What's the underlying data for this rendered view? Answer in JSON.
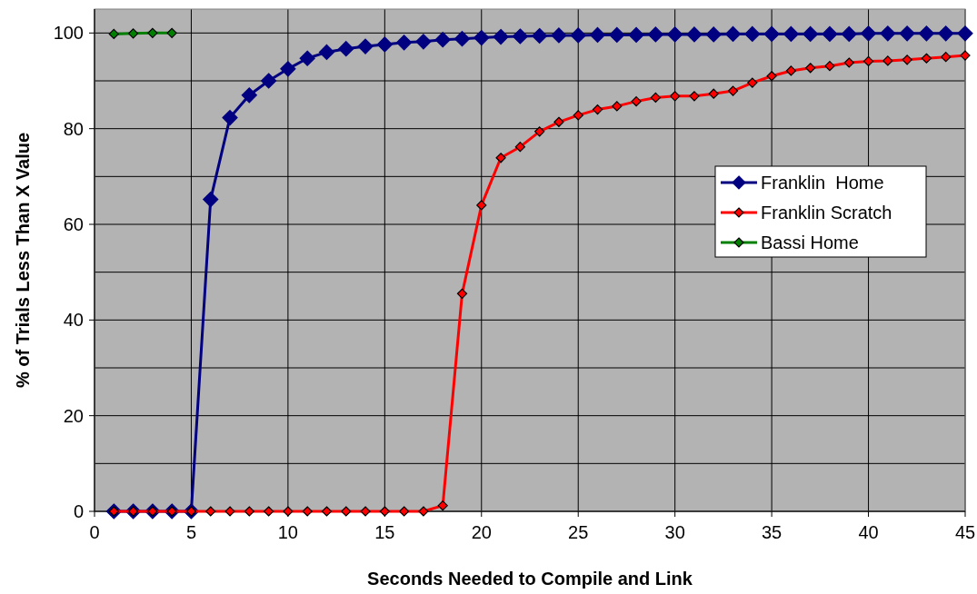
{
  "chart_data": {
    "type": "line",
    "xlabel": "Seconds Needed to Compile and Link",
    "ylabel": "% of Trials Less Than X Value",
    "x": [
      1,
      2,
      3,
      4,
      5,
      6,
      7,
      8,
      9,
      10,
      11,
      12,
      13,
      14,
      15,
      16,
      17,
      18,
      19,
      20,
      21,
      22,
      23,
      24,
      25,
      26,
      27,
      28,
      29,
      30,
      31,
      32,
      33,
      34,
      35,
      36,
      37,
      38,
      39,
      40,
      41,
      42,
      43,
      44,
      45
    ],
    "series": [
      {
        "name": "Franklin  Home",
        "color": "#000080",
        "values": [
          0,
          0,
          0,
          0,
          0,
          65.2,
          82.3,
          87,
          90,
          92.5,
          94.7,
          96,
          96.7,
          97.2,
          97.6,
          98,
          98.2,
          98.6,
          98.8,
          99,
          99.2,
          99.3,
          99.4,
          99.5,
          99.5,
          99.6,
          99.6,
          99.6,
          99.7,
          99.7,
          99.7,
          99.7,
          99.8,
          99.8,
          99.8,
          99.8,
          99.8,
          99.8,
          99.8,
          99.9,
          99.9,
          99.9,
          99.9,
          99.9,
          99.9
        ]
      },
      {
        "name": "Franklin Scratch",
        "color": "#ff0000",
        "values": [
          0,
          0,
          0,
          0,
          0,
          0,
          0,
          0,
          0,
          0,
          0,
          0,
          0,
          0,
          0,
          0,
          0,
          1.2,
          45.5,
          64,
          73.9,
          76.2,
          79.4,
          81.4,
          82.8,
          84,
          84.7,
          85.7,
          86.5,
          86.8,
          86.8,
          87.3,
          87.9,
          89.6,
          91,
          92.1,
          92.7,
          93.1,
          93.8,
          94.1,
          94.2,
          94.4,
          94.7,
          95,
          95.3
        ]
      },
      {
        "name": "Bassi Home",
        "color": "#008000",
        "x": [
          1,
          2,
          3,
          4
        ],
        "values": [
          99.8,
          99.9,
          100,
          100
        ]
      }
    ],
    "xlim": [
      0,
      45
    ],
    "xticks": [
      0,
      5,
      10,
      15,
      20,
      25,
      30,
      35,
      40,
      45
    ],
    "ylim": [
      0,
      105
    ],
    "yticks": [
      0,
      20,
      40,
      60,
      80,
      100
    ],
    "grid": true,
    "legend": "right",
    "marker": "diamond",
    "line_style": "solid"
  }
}
